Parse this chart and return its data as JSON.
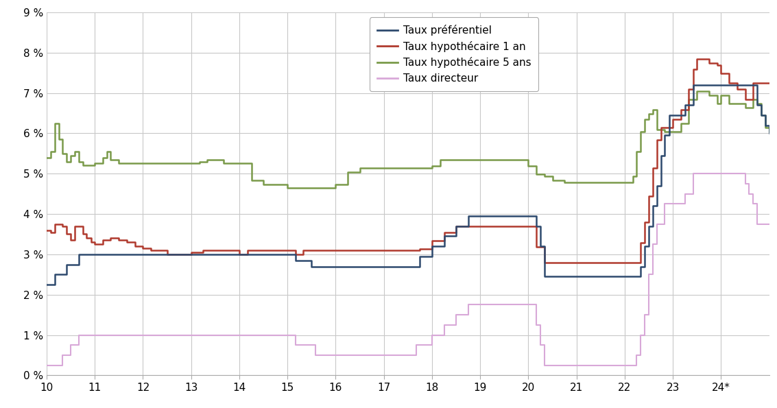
{
  "background_color": "#ffffff",
  "grid_color": "#c8c8c8",
  "series": {
    "preferentiel": {
      "label": "Taux préférentiel",
      "color": "#2e4a6e",
      "lw": 1.8,
      "data": [
        [
          2010.0,
          2.25
        ],
        [
          2010.17,
          2.5
        ],
        [
          2010.42,
          2.75
        ],
        [
          2010.67,
          3.0
        ],
        [
          2015.0,
          3.0
        ],
        [
          2015.17,
          2.85
        ],
        [
          2015.5,
          2.7
        ],
        [
          2017.58,
          2.7
        ],
        [
          2017.75,
          2.95
        ],
        [
          2018.0,
          3.2
        ],
        [
          2018.25,
          3.45
        ],
        [
          2018.5,
          3.7
        ],
        [
          2018.75,
          3.95
        ],
        [
          2019.0,
          3.95
        ],
        [
          2020.17,
          3.7
        ],
        [
          2020.25,
          3.2
        ],
        [
          2020.33,
          2.45
        ],
        [
          2022.25,
          2.45
        ],
        [
          2022.33,
          2.7
        ],
        [
          2022.42,
          3.2
        ],
        [
          2022.5,
          3.7
        ],
        [
          2022.58,
          4.2
        ],
        [
          2022.67,
          4.7
        ],
        [
          2022.75,
          5.45
        ],
        [
          2022.83,
          5.95
        ],
        [
          2022.92,
          6.45
        ],
        [
          2023.0,
          6.45
        ],
        [
          2023.25,
          6.7
        ],
        [
          2023.42,
          7.2
        ],
        [
          2024.67,
          7.2
        ],
        [
          2024.75,
          6.7
        ],
        [
          2024.83,
          6.45
        ],
        [
          2024.92,
          6.2
        ],
        [
          2025.0,
          6.0
        ]
      ]
    },
    "hypo1an": {
      "label": "Taux hypothécaire 1 an",
      "color": "#b03a2e",
      "lw": 1.8,
      "data": [
        [
          2010.0,
          3.6
        ],
        [
          2010.08,
          3.55
        ],
        [
          2010.17,
          3.75
        ],
        [
          2010.33,
          3.7
        ],
        [
          2010.42,
          3.5
        ],
        [
          2010.5,
          3.35
        ],
        [
          2010.58,
          3.7
        ],
        [
          2010.75,
          3.5
        ],
        [
          2010.83,
          3.4
        ],
        [
          2010.92,
          3.3
        ],
        [
          2011.0,
          3.25
        ],
        [
          2011.17,
          3.35
        ],
        [
          2011.33,
          3.4
        ],
        [
          2011.5,
          3.35
        ],
        [
          2011.67,
          3.3
        ],
        [
          2011.83,
          3.2
        ],
        [
          2012.0,
          3.15
        ],
        [
          2012.17,
          3.1
        ],
        [
          2012.5,
          3.0
        ],
        [
          2013.0,
          3.05
        ],
        [
          2013.25,
          3.1
        ],
        [
          2013.5,
          3.1
        ],
        [
          2014.0,
          3.0
        ],
        [
          2014.17,
          3.1
        ],
        [
          2014.5,
          3.1
        ],
        [
          2015.0,
          3.1
        ],
        [
          2015.17,
          3.0
        ],
        [
          2015.33,
          3.1
        ],
        [
          2016.0,
          3.1
        ],
        [
          2017.0,
          3.1
        ],
        [
          2017.5,
          3.1
        ],
        [
          2017.75,
          3.14
        ],
        [
          2018.0,
          3.34
        ],
        [
          2018.25,
          3.54
        ],
        [
          2018.5,
          3.69
        ],
        [
          2018.75,
          3.69
        ],
        [
          2019.0,
          3.69
        ],
        [
          2020.0,
          3.69
        ],
        [
          2020.17,
          3.19
        ],
        [
          2020.33,
          2.79
        ],
        [
          2022.25,
          2.79
        ],
        [
          2022.33,
          3.29
        ],
        [
          2022.42,
          3.79
        ],
        [
          2022.5,
          4.44
        ],
        [
          2022.58,
          5.14
        ],
        [
          2022.67,
          5.84
        ],
        [
          2022.75,
          6.14
        ],
        [
          2022.83,
          6.14
        ],
        [
          2023.0,
          6.34
        ],
        [
          2023.17,
          6.59
        ],
        [
          2023.33,
          7.09
        ],
        [
          2023.42,
          7.59
        ],
        [
          2023.5,
          7.84
        ],
        [
          2023.67,
          7.84
        ],
        [
          2023.75,
          7.74
        ],
        [
          2023.92,
          7.69
        ],
        [
          2024.0,
          7.49
        ],
        [
          2024.17,
          7.24
        ],
        [
          2024.33,
          7.09
        ],
        [
          2024.5,
          6.84
        ],
        [
          2024.67,
          7.24
        ],
        [
          2025.0,
          7.24
        ]
      ]
    },
    "hypo5ans": {
      "label": "Taux hypothécaire 5 ans",
      "color": "#7a9a4a",
      "lw": 1.8,
      "data": [
        [
          2010.0,
          5.4
        ],
        [
          2010.08,
          5.55
        ],
        [
          2010.17,
          6.25
        ],
        [
          2010.25,
          5.85
        ],
        [
          2010.33,
          5.5
        ],
        [
          2010.42,
          5.3
        ],
        [
          2010.5,
          5.45
        ],
        [
          2010.58,
          5.55
        ],
        [
          2010.67,
          5.3
        ],
        [
          2010.75,
          5.2
        ],
        [
          2011.0,
          5.25
        ],
        [
          2011.17,
          5.4
        ],
        [
          2011.25,
          5.55
        ],
        [
          2011.33,
          5.35
        ],
        [
          2011.5,
          5.25
        ],
        [
          2012.0,
          5.25
        ],
        [
          2012.5,
          5.25
        ],
        [
          2013.0,
          5.25
        ],
        [
          2013.17,
          5.3
        ],
        [
          2013.33,
          5.35
        ],
        [
          2013.5,
          5.35
        ],
        [
          2013.67,
          5.25
        ],
        [
          2014.0,
          5.25
        ],
        [
          2014.25,
          4.84
        ],
        [
          2014.5,
          4.74
        ],
        [
          2015.0,
          4.64
        ],
        [
          2016.0,
          4.74
        ],
        [
          2016.25,
          5.04
        ],
        [
          2016.5,
          5.14
        ],
        [
          2017.0,
          5.14
        ],
        [
          2017.5,
          5.14
        ],
        [
          2018.0,
          5.19
        ],
        [
          2018.17,
          5.34
        ],
        [
          2018.5,
          5.34
        ],
        [
          2019.0,
          5.34
        ],
        [
          2020.0,
          5.19
        ],
        [
          2020.17,
          4.99
        ],
        [
          2020.33,
          4.94
        ],
        [
          2020.5,
          4.84
        ],
        [
          2020.75,
          4.79
        ],
        [
          2022.0,
          4.79
        ],
        [
          2022.17,
          4.94
        ],
        [
          2022.25,
          5.54
        ],
        [
          2022.33,
          6.04
        ],
        [
          2022.42,
          6.34
        ],
        [
          2022.5,
          6.49
        ],
        [
          2022.58,
          6.59
        ],
        [
          2022.67,
          6.09
        ],
        [
          2022.83,
          6.04
        ],
        [
          2023.0,
          6.04
        ],
        [
          2023.17,
          6.24
        ],
        [
          2023.33,
          6.84
        ],
        [
          2023.5,
          7.04
        ],
        [
          2023.67,
          7.04
        ],
        [
          2023.75,
          6.94
        ],
        [
          2023.92,
          6.74
        ],
        [
          2024.0,
          6.94
        ],
        [
          2024.17,
          6.74
        ],
        [
          2024.5,
          6.64
        ],
        [
          2024.67,
          6.84
        ],
        [
          2024.75,
          6.74
        ],
        [
          2024.83,
          6.44
        ],
        [
          2024.92,
          6.14
        ],
        [
          2025.0,
          6.04
        ]
      ]
    },
    "directeur": {
      "label": "Taux directeur",
      "color": "#d8a8d8",
      "lw": 1.5,
      "data": [
        [
          2010.0,
          0.25
        ],
        [
          2010.25,
          0.25
        ],
        [
          2010.33,
          0.5
        ],
        [
          2010.5,
          0.75
        ],
        [
          2010.67,
          1.0
        ],
        [
          2015.0,
          1.0
        ],
        [
          2015.17,
          0.75
        ],
        [
          2015.58,
          0.5
        ],
        [
          2017.5,
          0.5
        ],
        [
          2017.67,
          0.75
        ],
        [
          2018.0,
          1.0
        ],
        [
          2018.25,
          1.25
        ],
        [
          2018.5,
          1.5
        ],
        [
          2018.75,
          1.75
        ],
        [
          2020.0,
          1.75
        ],
        [
          2020.17,
          1.25
        ],
        [
          2020.25,
          0.75
        ],
        [
          2020.33,
          0.25
        ],
        [
          2022.17,
          0.25
        ],
        [
          2022.25,
          0.5
        ],
        [
          2022.33,
          1.0
        ],
        [
          2022.42,
          1.5
        ],
        [
          2022.5,
          2.5
        ],
        [
          2022.58,
          3.25
        ],
        [
          2022.67,
          3.75
        ],
        [
          2022.83,
          4.25
        ],
        [
          2023.0,
          4.25
        ],
        [
          2023.25,
          4.5
        ],
        [
          2023.42,
          5.0
        ],
        [
          2024.42,
          5.0
        ],
        [
          2024.5,
          4.75
        ],
        [
          2024.58,
          4.5
        ],
        [
          2024.67,
          4.25
        ],
        [
          2024.75,
          3.75
        ],
        [
          2025.0,
          3.75
        ]
      ]
    }
  },
  "xlim": [
    2010,
    2025
  ],
  "ylim": [
    0,
    9
  ],
  "xtick_positions": [
    2010,
    2011,
    2012,
    2013,
    2014,
    2015,
    2016,
    2017,
    2018,
    2019,
    2020,
    2021,
    2022,
    2023,
    2024
  ],
  "xtick_labels": [
    "10",
    "11",
    "12",
    "13",
    "14",
    "15",
    "16",
    "17",
    "18",
    "19",
    "20",
    "21",
    "22",
    "23",
    "24*"
  ],
  "ytick_positions": [
    0,
    1,
    2,
    3,
    4,
    5,
    6,
    7,
    8,
    9
  ],
  "ytick_labels": [
    "0 %",
    "1 %",
    "2 %",
    "3 %",
    "4 %",
    "5 %",
    "6 %",
    "7 %",
    "8 %",
    "9 %"
  ]
}
